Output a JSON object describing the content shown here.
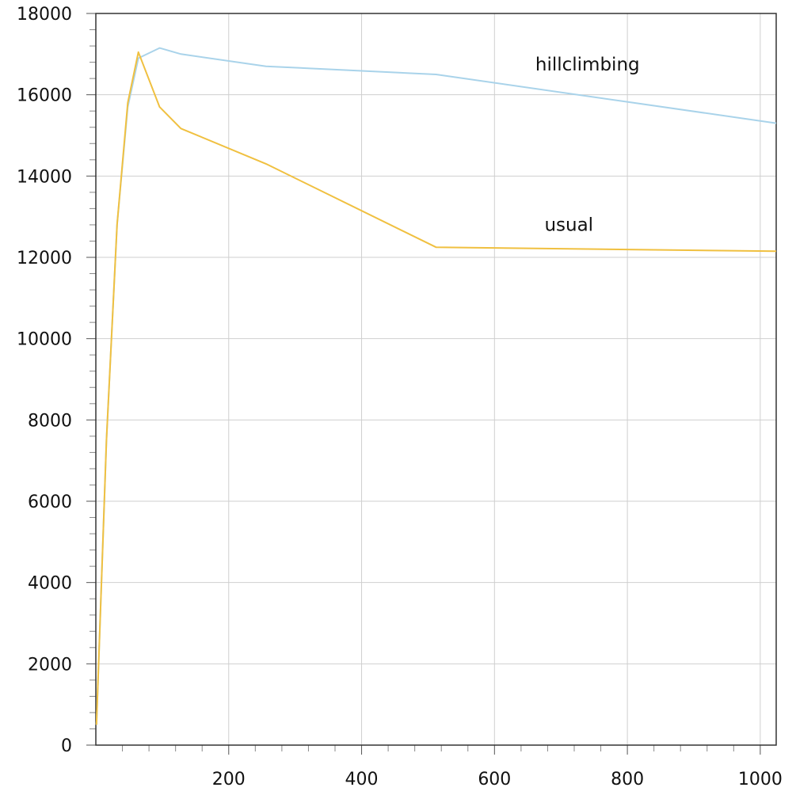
{
  "chart_data": {
    "type": "line",
    "title": "",
    "xlabel": "",
    "ylabel": "",
    "xlim": [
      0,
      1024
    ],
    "ylim": [
      0,
      18000
    ],
    "x_ticks": [
      200,
      400,
      600,
      800,
      1000
    ],
    "y_ticks": [
      0,
      2000,
      4000,
      6000,
      8000,
      10000,
      12000,
      14000,
      16000,
      18000
    ],
    "grid": true,
    "legend": "inline labels",
    "series": [
      {
        "name": "hillclimbing",
        "color": "#a9d3ea",
        "label_anchor": [
          740,
          16600
        ],
        "x": [
          1,
          16,
          32,
          48,
          64,
          96,
          128,
          256,
          512,
          1024
        ],
        "y": [
          500,
          7500,
          12800,
          15700,
          16900,
          17150,
          17000,
          16700,
          16500,
          15300
        ]
      },
      {
        "name": "usual",
        "color": "#f0c040",
        "label_anchor": [
          712,
          12650
        ],
        "x": [
          1,
          16,
          32,
          48,
          64,
          96,
          128,
          256,
          512,
          1024
        ],
        "y": [
          500,
          7500,
          12800,
          15800,
          17050,
          15700,
          15170,
          14300,
          12250,
          12150
        ]
      }
    ]
  }
}
